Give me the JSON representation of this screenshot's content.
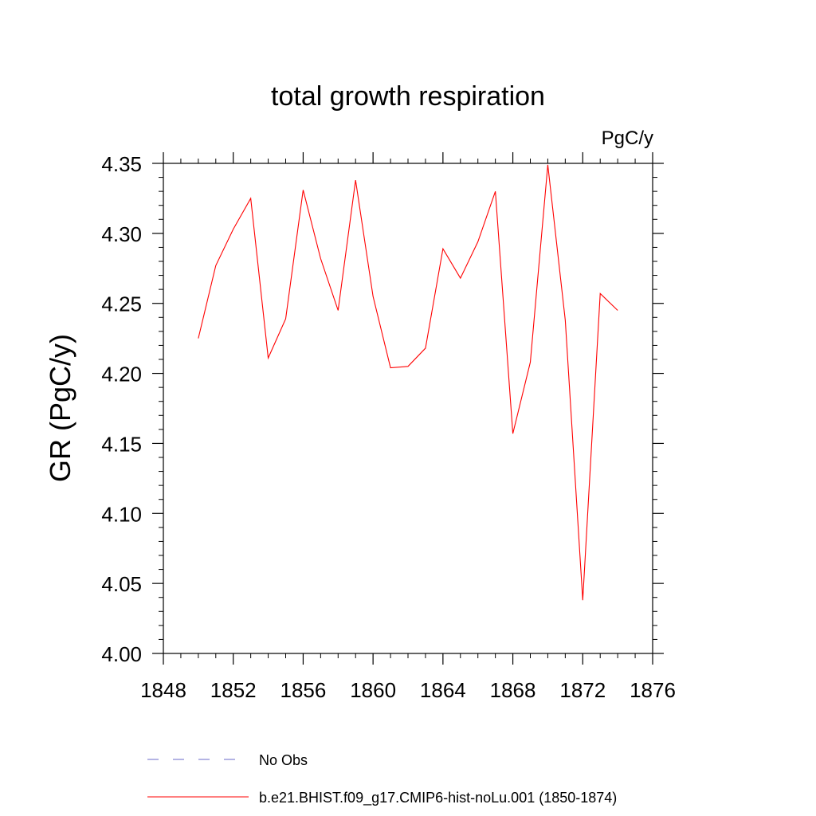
{
  "chart_data": {
    "type": "line",
    "title": "total growth respiration",
    "units_label": "PgC/y",
    "ylabel": "GR  (PgC/y)",
    "xlabel": "",
    "xlim": [
      1848,
      1876
    ],
    "ylim": [
      4.0,
      4.35
    ],
    "x_ticks": [
      "1848",
      "1852",
      "1856",
      "1860",
      "1864",
      "1868",
      "1872",
      "1876"
    ],
    "y_ticks": [
      "4.00",
      "4.05",
      "4.10",
      "4.15",
      "4.20",
      "4.25",
      "4.30",
      "4.35"
    ],
    "grid": false,
    "legend_position": "bottom",
    "series": [
      {
        "name": "b.e21.BHIST.f09_g17.CMIP6-hist-noLu.001 (1850-1874)",
        "color": "#ff0000",
        "line_style": "solid",
        "x": [
          1850,
          1851,
          1852,
          1853,
          1854,
          1855,
          1856,
          1857,
          1858,
          1859,
          1860,
          1861,
          1862,
          1863,
          1864,
          1865,
          1866,
          1867,
          1868,
          1869,
          1870,
          1871,
          1872,
          1873,
          1874
        ],
        "values": [
          4.225,
          4.277,
          4.303,
          4.325,
          4.211,
          4.239,
          4.331,
          4.282,
          4.245,
          4.338,
          4.255,
          4.204,
          4.205,
          4.218,
          4.289,
          4.268,
          4.294,
          4.33,
          4.157,
          4.208,
          4.349,
          4.238,
          4.038,
          4.257,
          4.245
        ]
      }
    ],
    "legend": [
      {
        "label": "No Obs",
        "color": "#6a6ac8",
        "line_style": "dashed"
      },
      {
        "label": "b.e21.BHIST.f09_g17.CMIP6-hist-noLu.001 (1850-1874)",
        "color": "#ff0000",
        "line_style": "solid"
      }
    ]
  }
}
